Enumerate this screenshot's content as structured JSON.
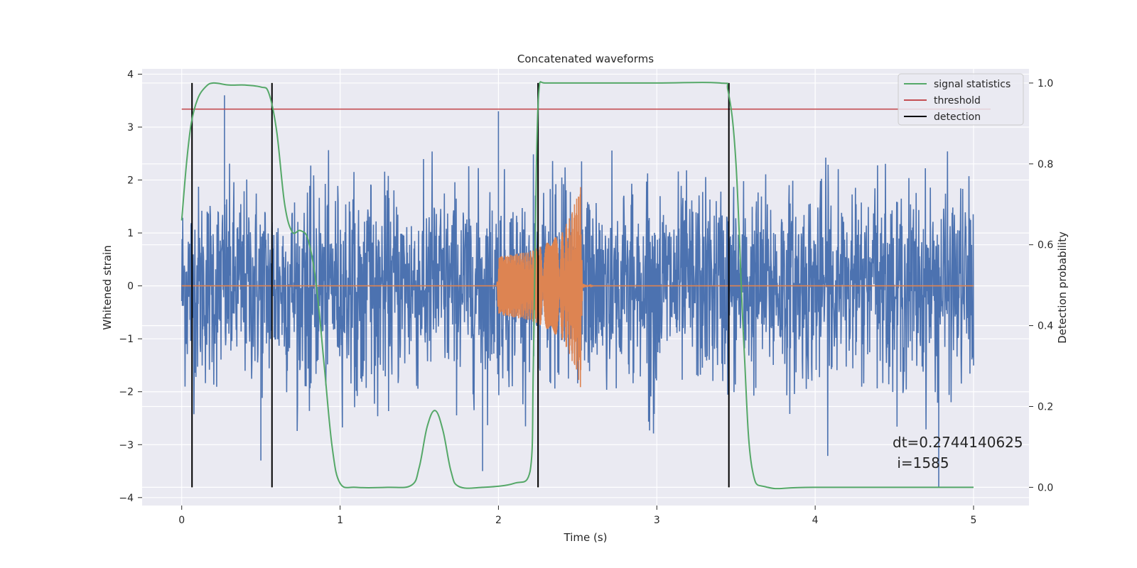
{
  "chart_data": {
    "type": "line",
    "title": "Concatenated waveforms",
    "xlabel": "Time (s)",
    "ylabel": "Whitened strain",
    "ylabel_right": "Detection probability",
    "xlim": [
      -0.25,
      5.35
    ],
    "ylim": [
      -4.15,
      4.1
    ],
    "ylim_right": [
      -0.045,
      1.035
    ],
    "x_ticks": [
      0,
      1,
      2,
      3,
      4,
      5
    ],
    "x_tick_labels": [
      "0",
      "1",
      "2",
      "3",
      "4",
      "5"
    ],
    "y_ticks": [
      -4,
      -3,
      -2,
      -1,
      0,
      1,
      2,
      3,
      4
    ],
    "y_tick_labels": [
      "−4",
      "−3",
      "−2",
      "−1",
      "0",
      "1",
      "2",
      "3",
      "4"
    ],
    "y_right_ticks": [
      0.0,
      0.2,
      0.4,
      0.6,
      0.8,
      1.0
    ],
    "y_right_tick_labels": [
      "0.0",
      "0.2",
      "0.4",
      "0.6",
      "0.8",
      "1.0"
    ],
    "grid": true,
    "legend_position": "top-right",
    "colors": {
      "strain": "#4c72b0",
      "waveform": "#dd8452",
      "statistics": "#55a868",
      "threshold": "#c44e52",
      "detection": "#000000",
      "background": "#eaeaf2",
      "grid": "#ffffff"
    },
    "series": [
      {
        "name": "",
        "role": "strain noise",
        "axis": "left",
        "x_range": [
          0,
          5
        ],
        "typical_peak_abs": 2.2,
        "max": 3.6,
        "min": -3.8,
        "outliers": [
          [
            0.27,
            3.6
          ],
          [
            0.5,
            -3.3
          ],
          [
            1.9,
            -3.5
          ],
          [
            4.78,
            -3.8
          ],
          [
            2.0,
            3.3
          ]
        ]
      },
      {
        "name": "",
        "role": "injected waveform",
        "axis": "left",
        "x": [
          0.0,
          1.99,
          2.0,
          2.1,
          2.2,
          2.3,
          2.4,
          2.45,
          2.5,
          2.52,
          2.53,
          2.55,
          2.6,
          5.0
        ],
        "amplitude": [
          0.0,
          0.0,
          0.55,
          0.6,
          0.65,
          0.8,
          1.0,
          1.3,
          1.7,
          1.95,
          0.05,
          0.02,
          0.0,
          0.0
        ]
      },
      {
        "name": "signal statistics",
        "axis": "right",
        "x": [
          0.0,
          0.03,
          0.06,
          0.1,
          0.15,
          0.2,
          0.3,
          0.4,
          0.5,
          0.55,
          0.6,
          0.65,
          0.7,
          0.75,
          0.8,
          0.85,
          0.9,
          0.95,
          1.0,
          1.1,
          1.3,
          1.45,
          1.5,
          1.55,
          1.6,
          1.65,
          1.7,
          1.75,
          1.9,
          2.1,
          2.2,
          2.22,
          2.24,
          2.26,
          2.3,
          2.5,
          3.0,
          3.4,
          3.45,
          3.5,
          3.55,
          3.6,
          3.7,
          4.0,
          5.0
        ],
        "y": [
          0.66,
          0.8,
          0.9,
          0.96,
          0.99,
          1.0,
          0.995,
          0.995,
          0.99,
          0.975,
          0.88,
          0.7,
          0.63,
          0.635,
          0.61,
          0.5,
          0.3,
          0.1,
          0.01,
          0.0,
          0.0,
          0.005,
          0.05,
          0.15,
          0.19,
          0.14,
          0.04,
          0.002,
          0.0,
          0.01,
          0.04,
          0.3,
          0.8,
          1.0,
          1.0,
          1.0,
          1.0,
          1.0,
          0.98,
          0.8,
          0.35,
          0.05,
          0.0,
          0.0,
          0.0
        ]
      },
      {
        "name": "threshold",
        "axis": "left",
        "x": [
          0,
          5
        ],
        "y": [
          3.34,
          3.34
        ]
      },
      {
        "name": "detection",
        "axis": "right",
        "x_positions": [
          0.065,
          0.57,
          2.25,
          3.455
        ],
        "y_range": [
          0.0,
          1.0
        ]
      }
    ],
    "legend": [
      "signal statistics",
      "threshold",
      "detection"
    ],
    "annotation": {
      "line1": "dt=0.2744140625",
      "line2": " i=1585"
    }
  }
}
